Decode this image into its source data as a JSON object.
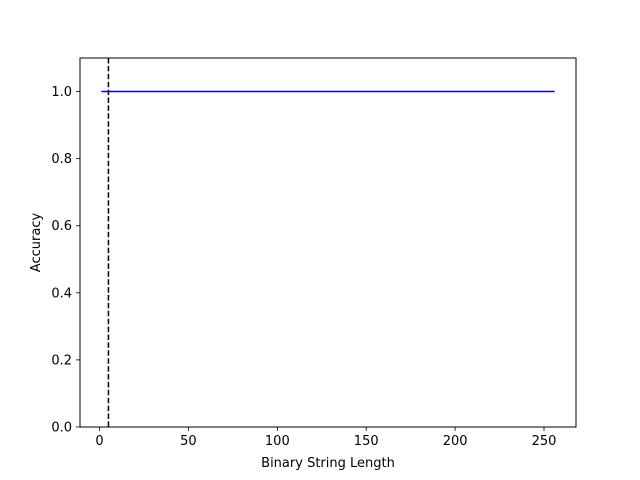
{
  "chart_data": {
    "type": "line",
    "title": "",
    "xlabel": "Binary String Length",
    "ylabel": "Accuracy",
    "xlim": [
      -11,
      268
    ],
    "ylim": [
      0.0,
      1.1
    ],
    "xticks": [
      0,
      50,
      100,
      150,
      200,
      250
    ],
    "yticks": [
      0.0,
      0.2,
      0.4,
      0.6,
      0.8,
      1.0
    ],
    "xtick_labels": [
      "0",
      "50",
      "100",
      "150",
      "200",
      "250"
    ],
    "ytick_labels": [
      "0.0",
      "0.2",
      "0.4",
      "0.6",
      "0.8",
      "1.0"
    ],
    "grid": false,
    "series": [
      {
        "x": [
          1,
          256
        ],
        "y": [
          1.0,
          1.0
        ],
        "color": "#0000ff"
      }
    ],
    "vlines": [
      {
        "x": 5,
        "color": "#000000",
        "style": "dashed"
      }
    ]
  }
}
